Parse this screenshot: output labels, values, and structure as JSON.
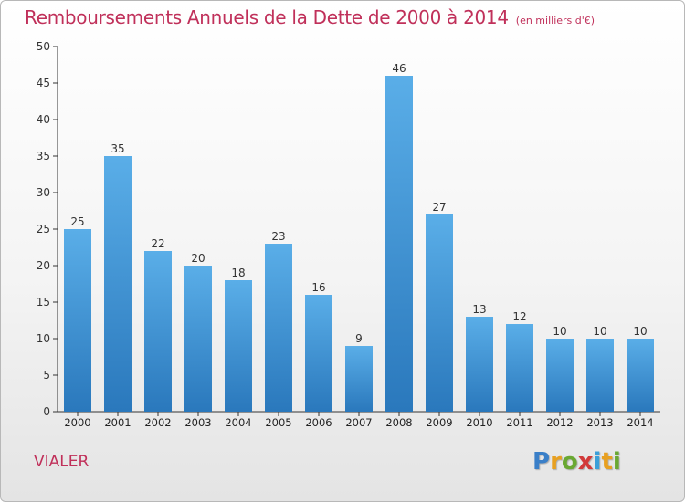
{
  "header": {
    "title": "Remboursements Annuels de la Dette de 2000 à 2014",
    "unit": "(en milliers d'€)"
  },
  "footer": {
    "commune": "VIALER",
    "logo": {
      "text": "Proxiti",
      "letter_colors": [
        "#3a7fc8",
        "#e8a020",
        "#6aa832",
        "#d23a3a",
        "#3a9fd8",
        "#e8a020",
        "#6aa832"
      ]
    }
  },
  "chart_data": {
    "type": "bar",
    "categories": [
      "2000",
      "2001",
      "2002",
      "2003",
      "2004",
      "2005",
      "2006",
      "2007",
      "2008",
      "2009",
      "2010",
      "2011",
      "2012",
      "2013",
      "2014"
    ],
    "values": [
      25,
      35,
      22,
      20,
      18,
      23,
      16,
      9,
      46,
      27,
      13,
      12,
      10,
      10,
      10
    ],
    "ylim": [
      0,
      50
    ],
    "yticks": [
      0,
      5,
      10,
      15,
      20,
      25,
      30,
      35,
      40,
      45,
      50
    ],
    "grid": false,
    "bar_color_top": "#5aaee8",
    "bar_color_bottom": "#2a78bc"
  }
}
